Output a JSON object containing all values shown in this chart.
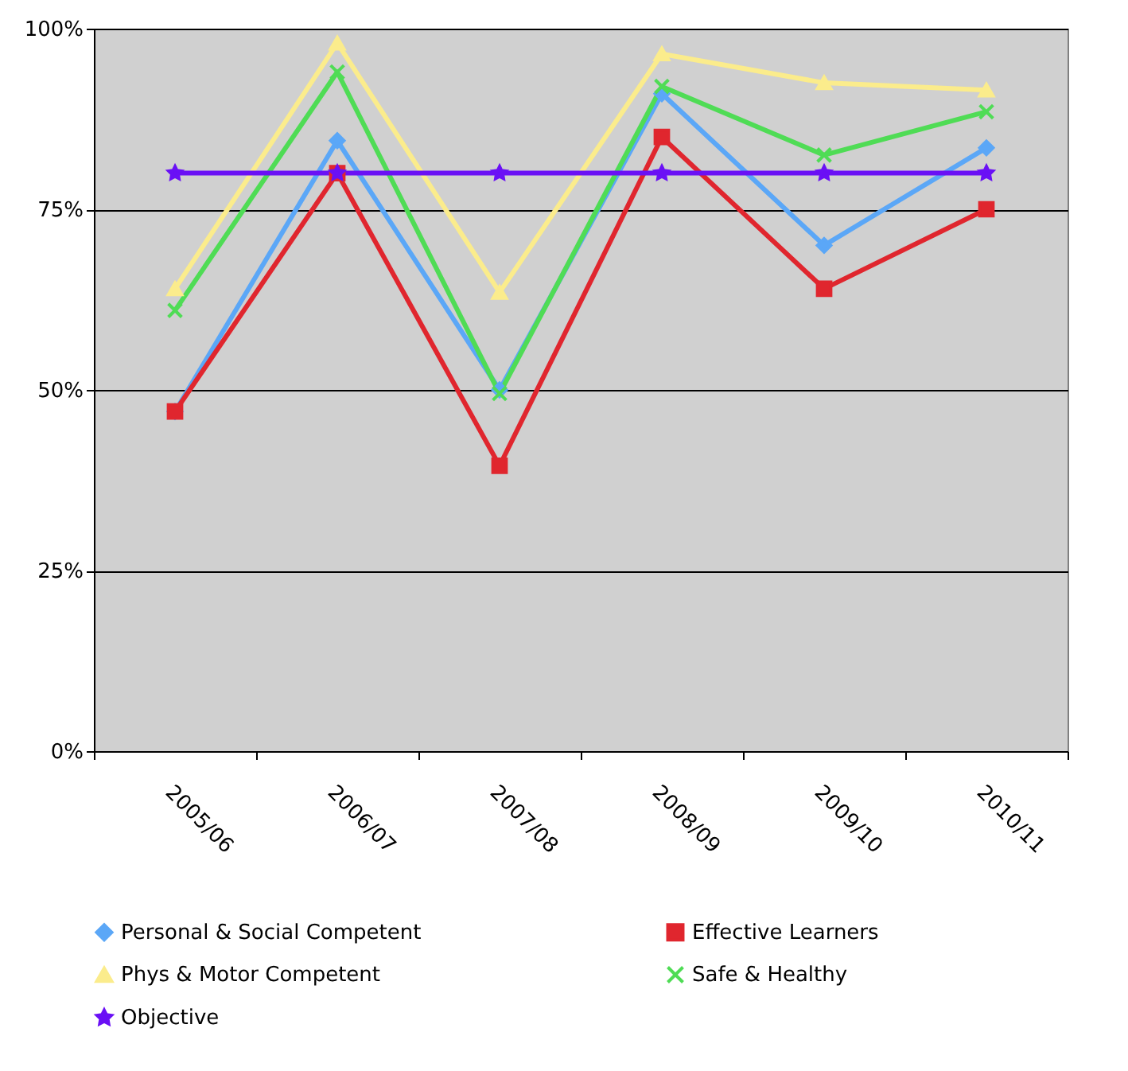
{
  "chart_data": {
    "type": "line",
    "categories": [
      "2005/06",
      "2006/07",
      "2007/08",
      "2008/09",
      "2009/10",
      "2010/11"
    ],
    "series": [
      {
        "name": "Personal & Social Competent",
        "color": "#5ba7f7",
        "marker": "diamond",
        "values": [
          47,
          84.5,
          50,
          91,
          70,
          83.5
        ]
      },
      {
        "name": "Effective Learners",
        "color": "#e0262e",
        "marker": "square",
        "values": [
          47,
          80,
          39.5,
          85,
          64,
          75
        ]
      },
      {
        "name": "Phys & Motor Competent",
        "color": "#fbec8c",
        "marker": "triangle",
        "values": [
          64,
          98,
          63.5,
          96.5,
          92.5,
          91.5
        ]
      },
      {
        "name": "Safe & Healthy",
        "color": "#4fdc55",
        "marker": "cross",
        "values": [
          61,
          94,
          49.5,
          92,
          82.5,
          88.5
        ]
      },
      {
        "name": "Objective",
        "color": "#6a10f5",
        "marker": "star",
        "values": [
          80,
          80,
          80,
          80,
          80,
          80
        ]
      }
    ],
    "ylim": [
      0,
      100
    ],
    "yticks": [
      {
        "value": 0,
        "label": "0%"
      },
      {
        "value": 25,
        "label": "25%"
      },
      {
        "value": 50,
        "label": "50%"
      },
      {
        "value": 75,
        "label": "75%"
      },
      {
        "value": 100,
        "label": "100%"
      }
    ],
    "grid": "y",
    "legend": "bottom"
  }
}
